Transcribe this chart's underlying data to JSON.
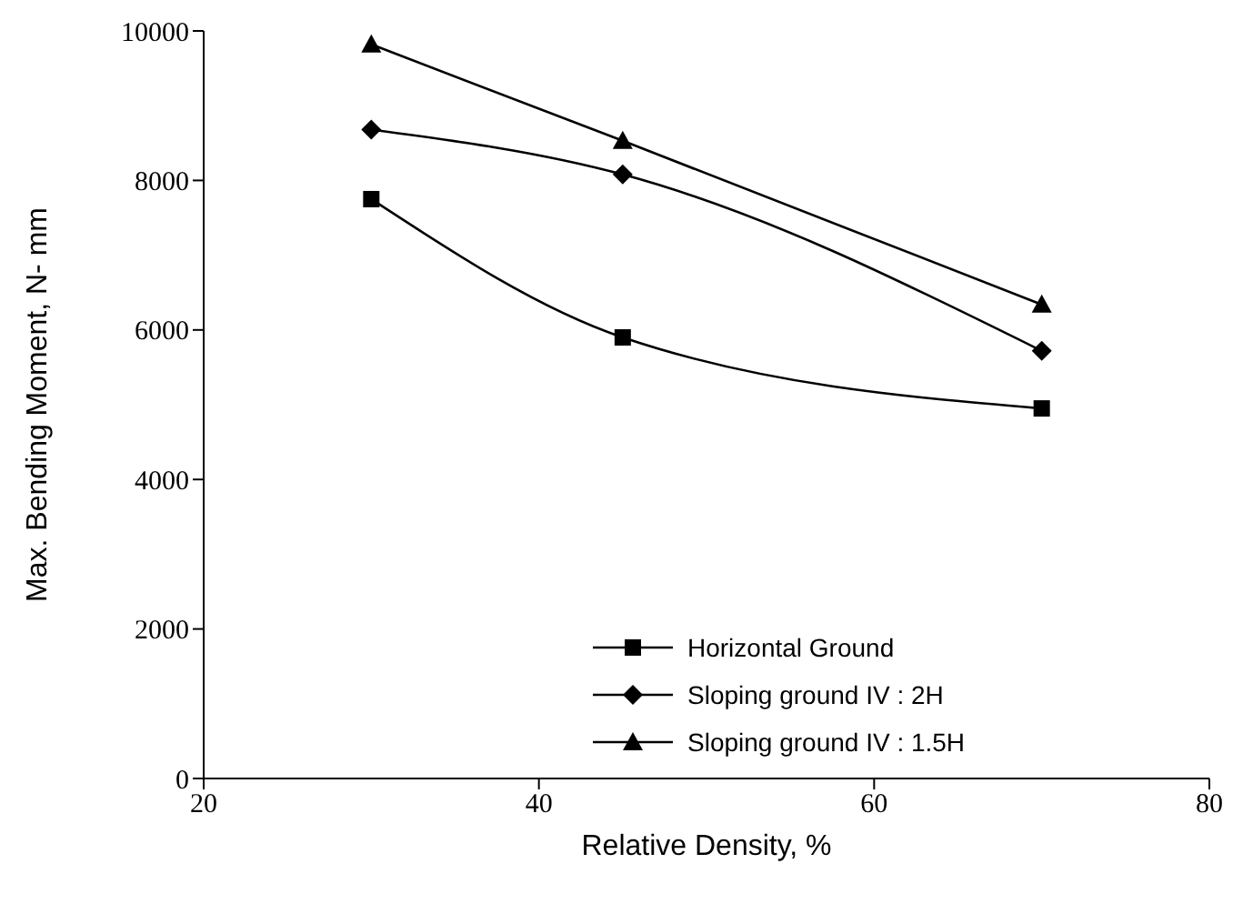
{
  "chart_data": {
    "type": "line",
    "xlabel": "Relative Density, %",
    "ylabel": "Max. Bending Moment, N- mm",
    "x": [
      30,
      45,
      70
    ],
    "series": [
      {
        "name": "Horizontal Ground",
        "color": "#000000",
        "marker": "square",
        "values": [
          7750,
          5900,
          4950
        ]
      },
      {
        "name": "Sloping ground IV : 2H",
        "color": "#000000",
        "marker": "diamond",
        "values": [
          8680,
          8080,
          5720
        ]
      },
      {
        "name": "Sloping ground IV : 1.5H",
        "color": "#000000",
        "marker": "triangle",
        "values": [
          9820,
          8530,
          6340
        ]
      }
    ],
    "xlim": [
      20,
      80
    ],
    "xticks": [
      20,
      40,
      60,
      80
    ],
    "ylim": [
      0,
      10000
    ],
    "yticks": [
      0,
      2000,
      4000,
      6000,
      8000,
      10000
    ],
    "grid": false,
    "legend": "bottom",
    "line_style": "solid"
  }
}
